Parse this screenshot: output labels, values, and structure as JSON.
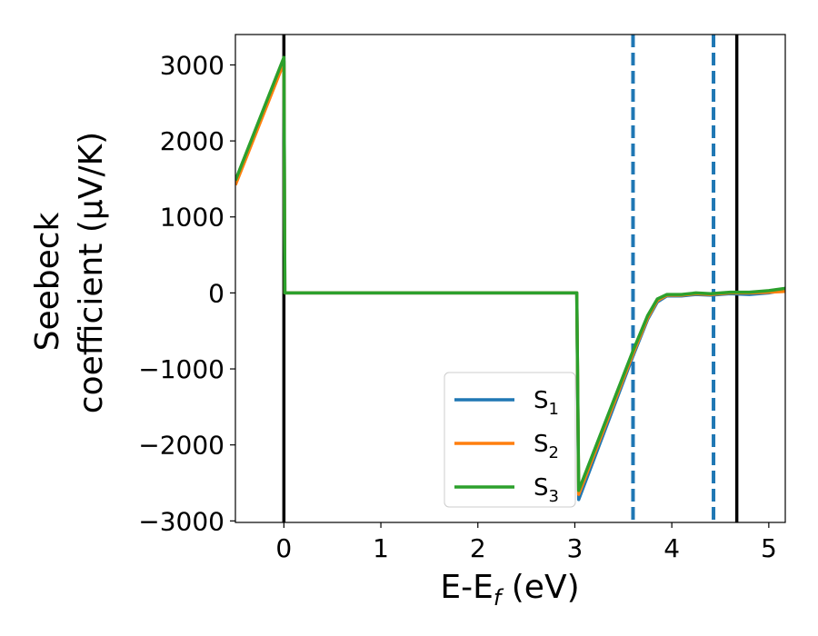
{
  "chart_data": {
    "type": "line",
    "xlabel_main": "E-E",
    "xlabel_sub": "f",
    "xlabel_unit": " (eV)",
    "ylabel_line1": "Seebeck",
    "ylabel_line2": "coefficient  (μV/K)",
    "xlim": [
      -0.5,
      5.17
    ],
    "ylim": [
      -3020,
      3400
    ],
    "xticks": [
      {
        "value": 0,
        "label": "0"
      },
      {
        "value": 1,
        "label": "1"
      },
      {
        "value": 2,
        "label": "2"
      },
      {
        "value": 3,
        "label": "3"
      },
      {
        "value": 4,
        "label": "4"
      },
      {
        "value": 5,
        "label": "5"
      }
    ],
    "yticks": [
      {
        "value": 3000,
        "label": "3000"
      },
      {
        "value": 2000,
        "label": "2000"
      },
      {
        "value": 1000,
        "label": "1000"
      },
      {
        "value": 0,
        "label": "0"
      },
      {
        "value": -1000,
        "label": "−1000"
      },
      {
        "value": -2000,
        "label": "−2000"
      },
      {
        "value": -3000,
        "label": "−3000"
      }
    ],
    "vlines": [
      {
        "x": 0,
        "color": "#000000",
        "style": "solid"
      },
      {
        "x": 4.67,
        "color": "#000000",
        "style": "solid"
      },
      {
        "x": 3.6,
        "color": "#1f77b4",
        "style": "dashed"
      },
      {
        "x": 4.43,
        "color": "#1f77b4",
        "style": "dashed"
      }
    ],
    "legend_position": "lower-center",
    "series": [
      {
        "name": "S",
        "sub": "1",
        "color": "#1f77b4",
        "x": [
          -0.5,
          0.0,
          0.01,
          1.0,
          2.0,
          3.02,
          3.04,
          3.6,
          3.75,
          3.85,
          3.95,
          4.1,
          4.25,
          4.4,
          4.6,
          4.8,
          5.0,
          5.17
        ],
        "y": [
          1450,
          3050,
          0,
          0,
          0,
          0,
          -2720,
          -830,
          -350,
          -120,
          -40,
          -40,
          -20,
          -30,
          -10,
          -20,
          0,
          40
        ]
      },
      {
        "name": "S",
        "sub": "2",
        "color": "#ff7f0e",
        "x": [
          -0.5,
          0.0,
          0.01,
          1.0,
          2.0,
          3.02,
          3.04,
          3.6,
          3.75,
          3.85,
          3.95,
          4.1,
          4.25,
          4.4,
          4.6,
          4.8,
          5.0,
          5.17
        ],
        "y": [
          1420,
          3030,
          0,
          0,
          0,
          0,
          -2650,
          -800,
          -330,
          -100,
          -30,
          -30,
          -10,
          -20,
          0,
          0,
          10,
          20
        ]
      },
      {
        "name": "S",
        "sub": "3",
        "color": "#2ca02c",
        "x": [
          -0.5,
          0.0,
          0.01,
          1.0,
          2.0,
          3.02,
          3.04,
          3.6,
          3.75,
          3.85,
          3.95,
          4.1,
          4.25,
          4.4,
          4.6,
          4.8,
          5.0,
          5.17
        ],
        "y": [
          1480,
          3100,
          0,
          0,
          0,
          0,
          -2600,
          -760,
          -300,
          -80,
          -20,
          -20,
          0,
          -10,
          10,
          10,
          30,
          60
        ]
      }
    ]
  }
}
